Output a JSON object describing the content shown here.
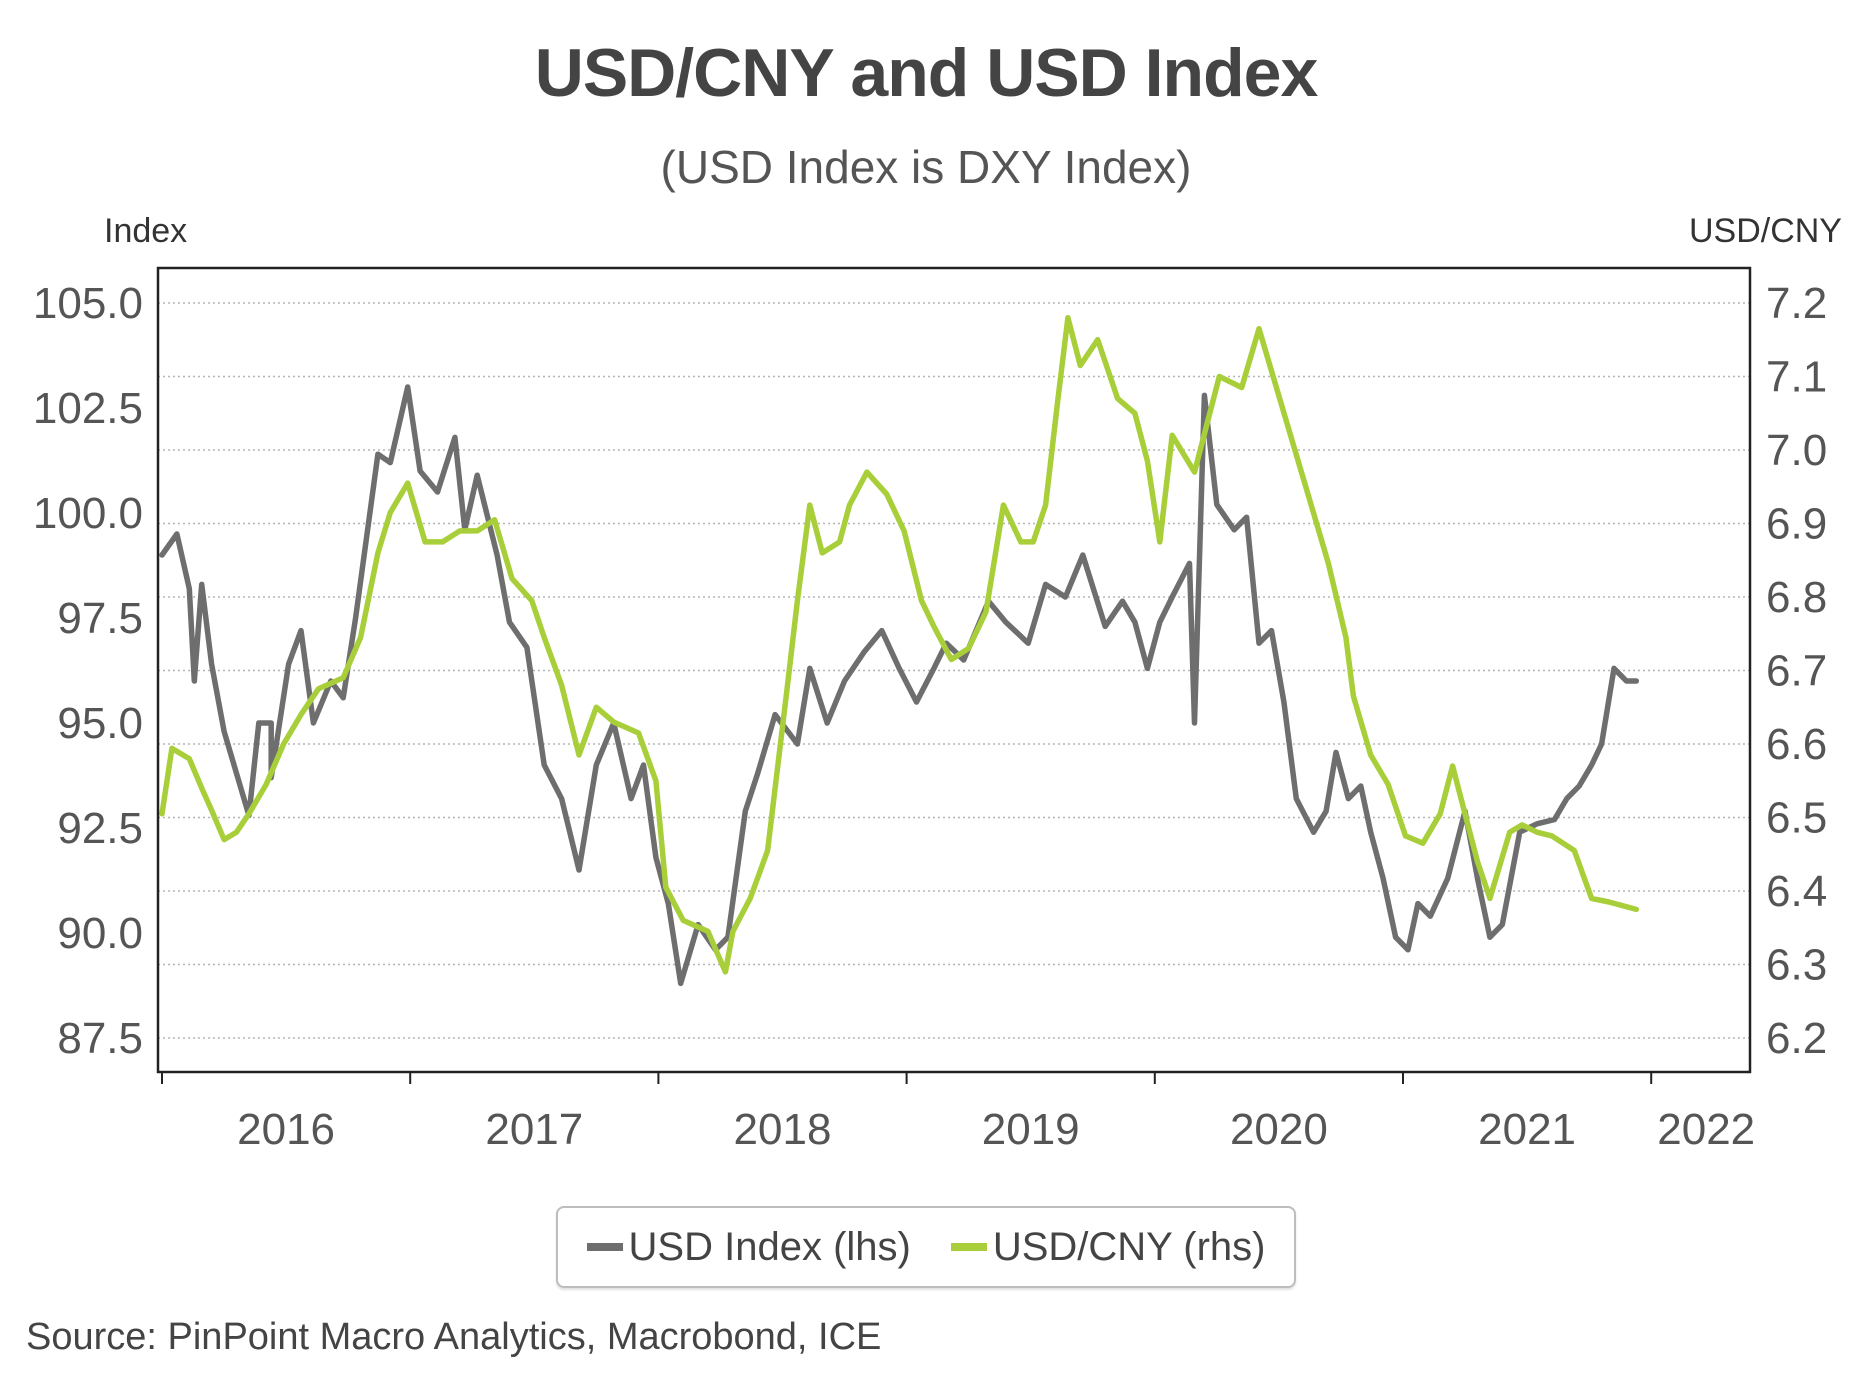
{
  "header": {
    "title": "USD/CNY and USD Index",
    "subtitle": "(USD Index is DXY Index)"
  },
  "axes": {
    "left_title": "Index",
    "right_title": "USD/CNY",
    "left_ticks": [
      "105.0",
      "102.5",
      "100.0",
      "97.5",
      "95.0",
      "92.5",
      "90.0",
      "87.5"
    ],
    "right_ticks": [
      "7.2",
      "7.1",
      "7.0",
      "6.9",
      "6.8",
      "6.7",
      "6.6",
      "6.5",
      "6.4",
      "6.3",
      "6.2"
    ],
    "x_ticks": [
      "2016",
      "2017",
      "2018",
      "2019",
      "2020",
      "2021",
      "2022"
    ]
  },
  "legend": {
    "items": [
      {
        "label": "USD Index (lhs)",
        "color": "#6e6e6e"
      },
      {
        "label": "USD/CNY (rhs)",
        "color": "#a8cf3a"
      }
    ]
  },
  "footer": {
    "source": "Source: PinPoint Macro Analytics, Macrobond, ICE"
  },
  "chart_data": {
    "type": "line",
    "title": "USD/CNY and USD Index",
    "subtitle": "(USD Index is DXY Index)",
    "xlabel": "",
    "ylabel": "Index",
    "ylabel_right": "USD/CNY",
    "xlim": [
      2016.0,
      2022.5
    ],
    "ylim": [
      87.5,
      105.0
    ],
    "ylim_right": [
      6.2,
      7.2
    ],
    "grid": "horizontal dotted",
    "legend_position": "bottom",
    "colors": {
      "usd_index": "#6e6e6e",
      "usdcny": "#a8cf3a"
    },
    "series": [
      {
        "name": "USD Index (lhs)",
        "axis": "left",
        "x": [
          2016.0,
          2016.06,
          2016.11,
          2016.13,
          2016.16,
          2016.2,
          2016.25,
          2016.3,
          2016.35,
          2016.39,
          2016.44,
          2016.44,
          2016.51,
          2016.56,
          2016.61,
          2016.68,
          2016.73,
          2016.78,
          2016.87,
          2016.92,
          2016.99,
          2017.04,
          2017.11,
          2017.18,
          2017.22,
          2017.27,
          2017.35,
          2017.4,
          2017.47,
          2017.54,
          2017.61,
          2017.68,
          2017.75,
          2017.82,
          2017.89,
          2017.94,
          2017.99,
          2018.04,
          2018.09,
          2018.16,
          2018.23,
          2018.28,
          2018.35,
          2018.4,
          2018.47,
          2018.56,
          2018.61,
          2018.68,
          2018.75,
          2018.83,
          2018.9,
          2018.97,
          2019.04,
          2019.11,
          2019.16,
          2019.23,
          2019.33,
          2019.4,
          2019.49,
          2019.56,
          2019.64,
          2019.71,
          2019.8,
          2019.87,
          2019.92,
          2019.97,
          2020.02,
          2020.07,
          2020.14,
          2020.16,
          2020.2,
          2020.25,
          2020.32,
          2020.37,
          2020.42,
          2020.47,
          2020.52,
          2020.57,
          2020.64,
          2020.69,
          2020.73,
          2020.78,
          2020.83,
          2020.87,
          2020.92,
          2020.97,
          2021.02,
          2021.06,
          2021.11,
          2021.18,
          2021.25,
          2021.3,
          2021.35,
          2021.4,
          2021.47,
          2021.54,
          2021.61,
          2021.66,
          2021.71,
          2021.76,
          2021.8,
          2021.85,
          2021.9,
          2021.94
        ],
        "values": [
          99.0,
          99.5,
          98.2,
          96.0,
          98.3,
          96.4,
          94.8,
          93.8,
          92.8,
          95.0,
          95.0,
          93.7,
          96.4,
          97.2,
          95.0,
          96.0,
          95.6,
          97.5,
          101.4,
          101.2,
          103.0,
          101.0,
          100.5,
          101.8,
          99.6,
          100.9,
          99.0,
          97.4,
          96.8,
          94.0,
          93.2,
          91.5,
          94.0,
          95.0,
          93.2,
          94.0,
          91.8,
          90.7,
          88.8,
          90.2,
          89.6,
          89.9,
          92.9,
          93.8,
          95.2,
          94.5,
          96.3,
          95.0,
          96.0,
          96.7,
          97.2,
          96.3,
          95.5,
          96.3,
          96.9,
          96.5,
          97.9,
          97.4,
          96.9,
          98.3,
          98.0,
          99.0,
          97.3,
          97.9,
          97.4,
          96.3,
          97.4,
          98.0,
          98.8,
          95.0,
          102.8,
          100.2,
          99.6,
          99.9,
          96.9,
          97.2,
          95.5,
          93.2,
          92.4,
          92.9,
          94.3,
          93.2,
          93.5,
          92.4,
          91.3,
          89.9,
          89.6,
          90.7,
          90.4,
          91.3,
          92.9,
          91.3,
          89.9,
          90.2,
          92.4,
          92.6,
          92.7,
          93.2,
          93.5,
          94.0,
          94.5,
          96.3,
          96.0,
          96.0
        ]
      },
      {
        "name": "USD/CNY (rhs)",
        "axis": "right",
        "x": [
          2016.0,
          2016.04,
          2016.11,
          2016.16,
          2016.2,
          2016.25,
          2016.3,
          2016.35,
          2016.42,
          2016.49,
          2016.56,
          2016.63,
          2016.73,
          2016.8,
          2016.87,
          2016.92,
          2016.99,
          2017.06,
          2017.13,
          2017.2,
          2017.27,
          2017.34,
          2017.41,
          2017.49,
          2017.54,
          2017.61,
          2017.68,
          2017.75,
          2017.82,
          2017.92,
          2017.99,
          2018.03,
          2018.1,
          2018.2,
          2018.27,
          2018.3,
          2018.37,
          2018.44,
          2018.52,
          2018.56,
          2018.61,
          2018.66,
          2018.73,
          2018.77,
          2018.84,
          2018.92,
          2018.99,
          2019.06,
          2019.11,
          2019.18,
          2019.25,
          2019.32,
          2019.39,
          2019.46,
          2019.51,
          2019.56,
          2019.61,
          2019.65,
          2019.7,
          2019.77,
          2019.85,
          2019.92,
          2019.97,
          2020.02,
          2020.07,
          2020.16,
          2020.26,
          2020.35,
          2020.42,
          2020.49,
          2020.56,
          2020.63,
          2020.7,
          2020.77,
          2020.8,
          2020.87,
          2020.94,
          2021.01,
          2021.08,
          2021.15,
          2021.2,
          2021.25,
          2021.3,
          2021.35,
          2021.43,
          2021.48,
          2021.54,
          2021.6,
          2021.69,
          2021.76,
          2021.83,
          2021.94
        ],
        "values": [
          6.505,
          6.594,
          6.58,
          6.54,
          6.51,
          6.47,
          6.48,
          6.505,
          6.545,
          6.6,
          6.64,
          6.675,
          6.69,
          6.745,
          6.86,
          6.915,
          6.955,
          6.875,
          6.875,
          6.89,
          6.89,
          6.905,
          6.825,
          6.795,
          6.745,
          6.68,
          6.585,
          6.65,
          6.63,
          6.615,
          6.55,
          6.405,
          6.36,
          6.345,
          6.29,
          6.345,
          6.39,
          6.455,
          6.68,
          6.795,
          6.925,
          6.86,
          6.875,
          6.925,
          6.97,
          6.94,
          6.89,
          6.795,
          6.76,
          6.715,
          6.73,
          6.78,
          6.925,
          6.875,
          6.875,
          6.925,
          7.07,
          7.18,
          7.115,
          7.15,
          7.07,
          7.05,
          6.985,
          6.875,
          7.02,
          6.97,
          7.1,
          7.085,
          7.165,
          7.085,
          7.005,
          6.925,
          6.845,
          6.745,
          6.665,
          6.585,
          6.545,
          6.475,
          6.465,
          6.505,
          6.57,
          6.505,
          6.44,
          6.39,
          6.48,
          6.49,
          6.48,
          6.475,
          6.455,
          6.39,
          6.385,
          6.375
        ]
      }
    ]
  }
}
